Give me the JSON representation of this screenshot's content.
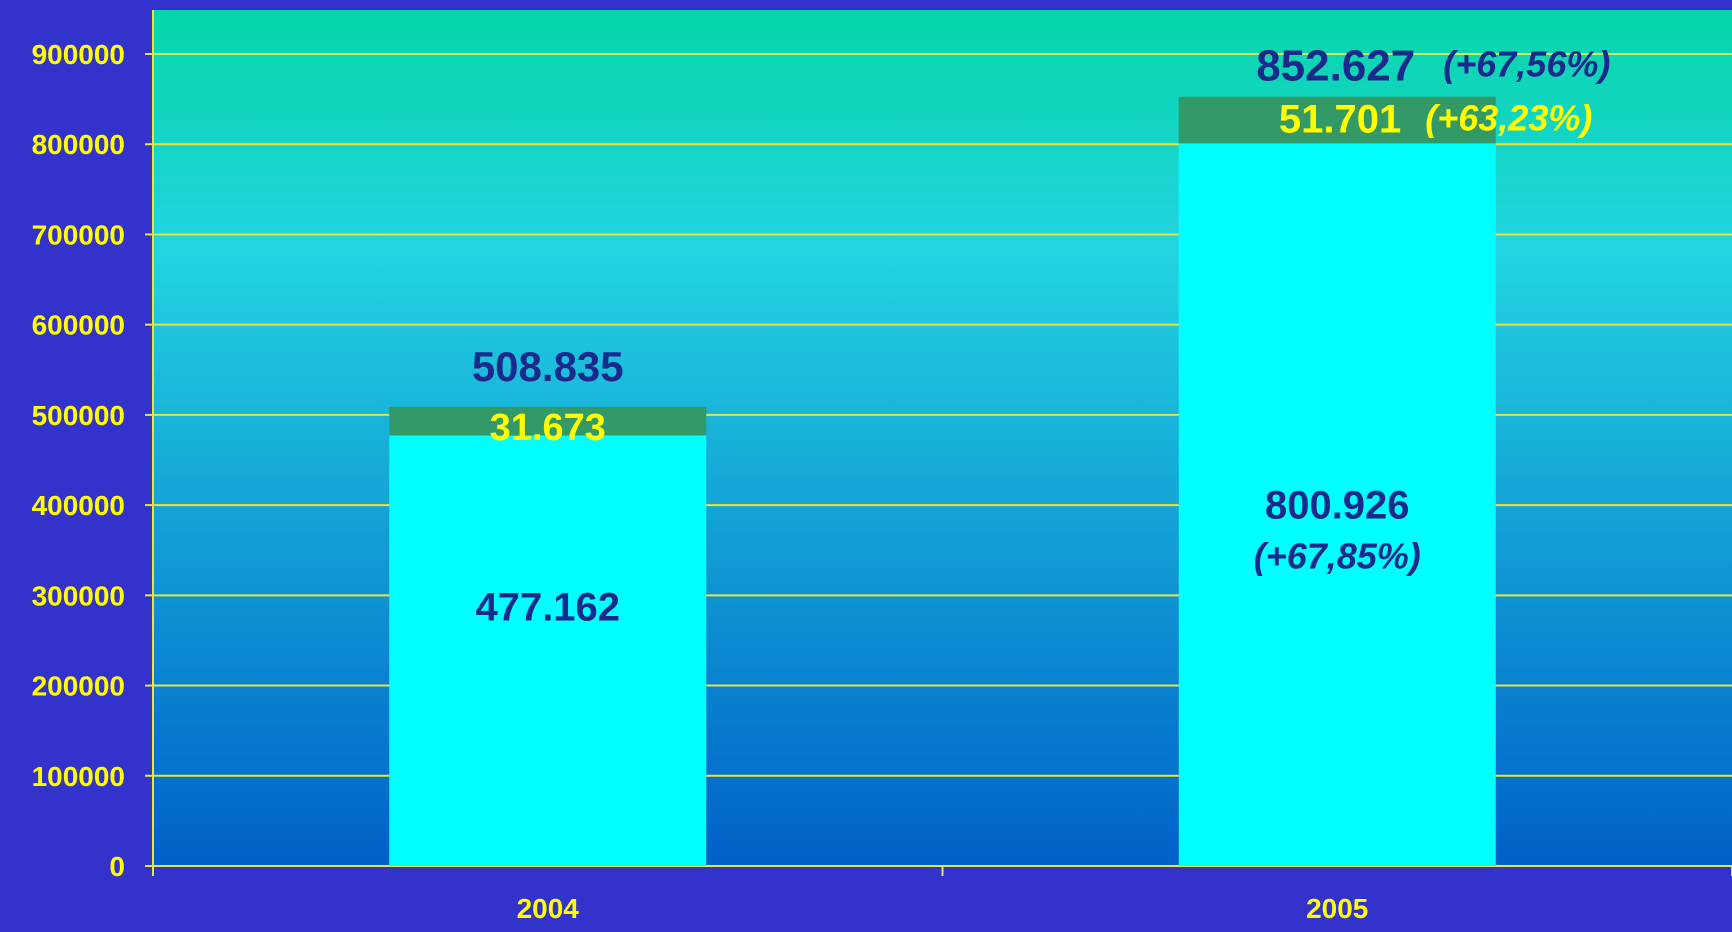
{
  "colors": {
    "background": "#3333cc",
    "plot_top": "#06d6a8",
    "plot_mid": "#22d4e0",
    "plot_bottom": "#0060c8",
    "gridline": "#e6e63c",
    "base_series": "#00ffff",
    "top_series": "#339966",
    "label_dark": "#1a2a8c",
    "label_yellow": "#ffff00"
  },
  "chart_data": {
    "type": "bar",
    "stacked": true,
    "categories": [
      "2004",
      "2005"
    ],
    "series": [
      {
        "values": [
          477162,
          800926
        ],
        "color": "#00ffff"
      },
      {
        "values": [
          31673,
          51701
        ],
        "color": "#339966"
      }
    ],
    "ylim": [
      0,
      900000
    ],
    "yticks": [
      "0",
      "100000",
      "200000",
      "300000",
      "400000",
      "500000",
      "600000",
      "700000",
      "800000",
      "900000"
    ],
    "grid": true,
    "legend": "none",
    "labels": {
      "base_2004": "477.162",
      "top_2004": "31.673",
      "total_2004": "508.835",
      "base_2005": "800.926",
      "base_2005_change": "(+67,85%)",
      "top_2005": "51.701",
      "top_2005_change": "(+63,23%)",
      "total_2005": "852.627",
      "total_2005_change": "(+67,56%)"
    }
  }
}
